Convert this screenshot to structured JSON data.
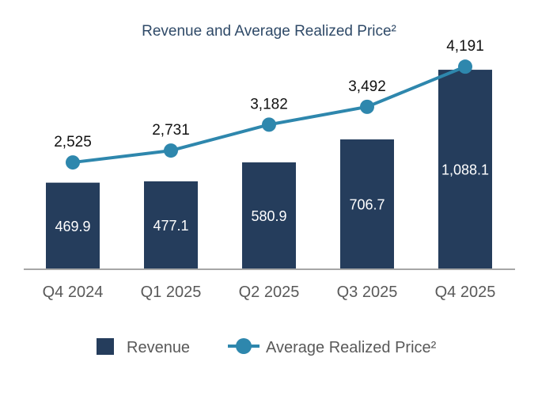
{
  "chart_data": {
    "type": "bar+line",
    "title": "Revenue and Average Realized Price²",
    "categories": [
      "Q4 2024",
      "Q1 2025",
      "Q2 2025",
      "Q3 2025",
      "Q4 2025"
    ],
    "series": [
      {
        "name": "Revenue",
        "type": "bar",
        "axis": "left",
        "values": [
          469.9,
          477.1,
          580.9,
          706.7,
          1088.1
        ],
        "labels": [
          "469.9",
          "477.1",
          "580.9",
          "706.7",
          "1,088.1"
        ],
        "color": "#253d5c"
      },
      {
        "name": "Average Realized Price²",
        "type": "line",
        "axis": "right",
        "values": [
          2525,
          2731,
          3182,
          3492,
          4191
        ],
        "labels": [
          "2,525",
          "2,731",
          "3,182",
          "3,492",
          "4,191"
        ],
        "color": "#2e87ad"
      }
    ],
    "ylim": [
      0,
      1470
    ],
    "y2lim": [
      680,
      5350
    ],
    "grid": false,
    "legend": "bottom"
  }
}
